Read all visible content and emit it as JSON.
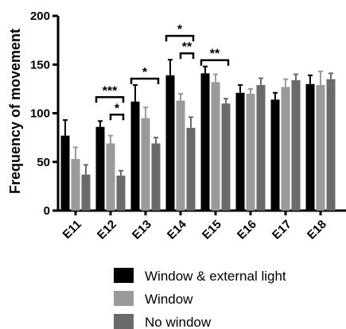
{
  "chart_data": {
    "type": "bar",
    "ylabel": "Frequency of movement",
    "xlabel": "",
    "ylim": [
      0,
      200
    ],
    "yticks": [
      0,
      50,
      100,
      150,
      200
    ],
    "categories": [
      "E11",
      "E12",
      "E13",
      "E14",
      "E15",
      "E16",
      "E17",
      "E18"
    ],
    "series": [
      {
        "name": "Window & external light",
        "color": "#000000",
        "values": [
          77,
          86,
          112,
          139,
          141,
          121,
          114,
          130
        ],
        "errors": [
          16,
          6,
          17,
          16,
          7,
          8,
          7,
          9
        ]
      },
      {
        "name": "Window",
        "color": "#9a9a9a",
        "values": [
          53,
          69,
          95,
          113,
          132,
          120,
          127,
          129
        ],
        "errors": [
          12,
          8,
          11,
          7,
          8,
          5,
          8,
          14
        ]
      },
      {
        "name": "No window",
        "color": "#6a6a6a",
        "values": [
          37,
          36,
          69,
          85,
          110,
          129,
          134,
          135
        ],
        "errors": [
          10,
          5,
          6,
          11,
          5,
          7,
          6,
          6
        ]
      }
    ],
    "significance": [
      {
        "label": "***",
        "category": "E12",
        "from": 0,
        "to": 2,
        "level": 1
      },
      {
        "label": "*",
        "category": "E12",
        "from": 1,
        "to": 2,
        "level": 0
      },
      {
        "label": "*",
        "category": "E13",
        "from": 0,
        "to": 2,
        "level": 0
      },
      {
        "label": "*",
        "category": "E14",
        "from": 0,
        "to": 2,
        "level": 1
      },
      {
        "label": "**",
        "category": "E14",
        "from": 1,
        "to": 2,
        "level": 0
      },
      {
        "label": "**",
        "category": "E15",
        "from": 0,
        "to": 2,
        "level": 0
      }
    ],
    "legend_position": "bottom"
  }
}
